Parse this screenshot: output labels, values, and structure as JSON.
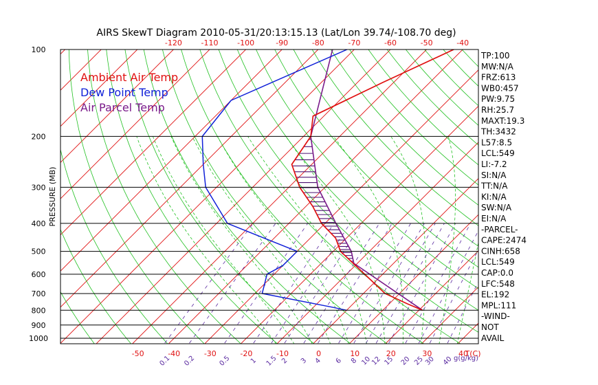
{
  "chart_data": {
    "type": "skew-t",
    "title": "AIRS SkewT Diagram 2010-05-31/20:13:15.13 (Lat/Lon 39.74/-108.70 deg)",
    "ylabel": "PRESSURE (MB)",
    "xlabel_bottom": "T(C)",
    "mixing_ratio_label": "g(g/kg)",
    "pressure_levels": [
      100,
      200,
      300,
      400,
      500,
      600,
      700,
      800,
      900,
      1000
    ],
    "pressure_tick_labels": [
      "100",
      "200",
      "300",
      "400",
      "500",
      "600",
      "700",
      "800",
      "900",
      "1000"
    ],
    "top_temperature_ticks": [
      -120,
      -110,
      -100,
      -90,
      -80,
      -70,
      -60,
      -50,
      -40
    ],
    "bottom_temperature_ticks": [
      -50,
      -40,
      -30,
      -20,
      -10,
      0,
      10,
      20,
      30,
      40
    ],
    "mixing_ratio_labels": [
      "0.1",
      "0.2",
      "0.5",
      "1",
      "1.5",
      "2",
      "3",
      "4",
      "6",
      "8",
      "10",
      "12",
      "15",
      "20",
      "25",
      "30",
      "40"
    ],
    "legend": [
      {
        "name": "Ambient Air Temp",
        "color": "#e01010"
      },
      {
        "name": "Dew Point Temp",
        "color": "#1020d8"
      },
      {
        "name": "Air Parcel Temp",
        "color": "#7a1a8a"
      }
    ],
    "colors": {
      "isotherm": "#e01010",
      "dry_adiabat": "#20c020",
      "moist_adiabat": "#20c020",
      "mixing_ratio": "#5a2aa0",
      "isobar": "#000000",
      "temperature": "#e01010",
      "dewpoint": "#1020d8",
      "parcel": "#7a1a8a",
      "cape_hatch": "#4a1070"
    },
    "temperature_profile": [
      {
        "p": 100,
        "t": -42.5
      },
      {
        "p": 130,
        "t": -53
      },
      {
        "p": 170,
        "t": -63
      },
      {
        "p": 200,
        "t": -58
      },
      {
        "p": 250,
        "t": -55.5
      },
      {
        "p": 300,
        "t": -47
      },
      {
        "p": 350,
        "t": -38
      },
      {
        "p": 400,
        "t": -31
      },
      {
        "p": 450,
        "t": -23
      },
      {
        "p": 500,
        "t": -18
      },
      {
        "p": 600,
        "t": -5
      },
      {
        "p": 700,
        "t": 6
      },
      {
        "p": 760,
        "t": 15
      },
      {
        "p": 800,
        "t": 21
      }
    ],
    "dewpoint_profile": [
      {
        "p": 100,
        "t": -72
      },
      {
        "p": 150,
        "t": -90
      },
      {
        "p": 200,
        "t": -88
      },
      {
        "p": 250,
        "t": -80
      },
      {
        "p": 300,
        "t": -73
      },
      {
        "p": 400,
        "t": -57
      },
      {
        "p": 500,
        "t": -30
      },
      {
        "p": 560,
        "t": -30
      },
      {
        "p": 600,
        "t": -32
      },
      {
        "p": 700,
        "t": -28
      },
      {
        "p": 780,
        "t": -5
      },
      {
        "p": 800,
        "t": 0
      }
    ],
    "parcel_profile": [
      {
        "p": 100,
        "t": -76
      },
      {
        "p": 200,
        "t": -58
      },
      {
        "p": 300,
        "t": -42
      },
      {
        "p": 400,
        "t": -27
      },
      {
        "p": 500,
        "t": -15
      },
      {
        "p": 550,
        "t": -11
      },
      {
        "p": 800,
        "t": 21
      }
    ],
    "indices": [
      "TP:100",
      "MW:N/A",
      "FRZ:613",
      "WB0:457",
      "PW:9.75",
      "RH:25.7",
      "MAXT:19.3",
      "TH:3432",
      "L57:8.5",
      "LCL:549",
      "LI:-7.2",
      "SI:N/A",
      "TT:N/A",
      "KI:N/A",
      "SW:N/A",
      "EI:N/A",
      "-PARCEL-",
      "CAPE:2474",
      "CINH:658",
      "LCL:549",
      "CAP:0.0",
      "LFC:548",
      "EL:192",
      "MPL:111",
      "-WIND-",
      "NOT",
      "AVAIL"
    ]
  }
}
